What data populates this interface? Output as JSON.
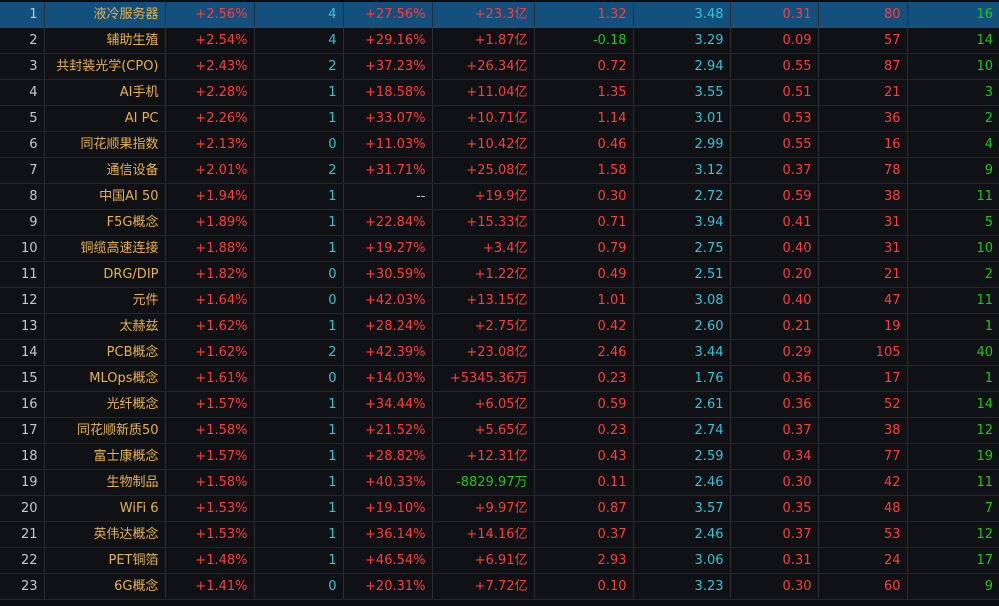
{
  "colors": {
    "up": "#ff3b3b",
    "down": "#19c919",
    "cyan": "#35c3d6",
    "name": "#e6b24a",
    "selected": "#13507e"
  },
  "selected_row": 0,
  "rows": [
    {
      "idx": "1",
      "name": "液冷服务器",
      "pct": "+2.56%",
      "c4": "4",
      "c5": "+27.56%",
      "c6": "+23.3亿",
      "c7": "1.32",
      "c8": "3.48",
      "c9": "0.31",
      "c10": "80",
      "c11": "16",
      "flow_dir": "up"
    },
    {
      "idx": "2",
      "name": "辅助生殖",
      "pct": "+2.54%",
      "c4": "4",
      "c5": "+29.16%",
      "c6": "+1.87亿",
      "c7": "-0.18",
      "c8": "3.29",
      "c9": "0.09",
      "c10": "57",
      "c11": "14",
      "flow_dir": "up"
    },
    {
      "idx": "3",
      "name": "共封装光学(CPO)",
      "pct": "+2.43%",
      "c4": "2",
      "c5": "+37.23%",
      "c6": "+26.34亿",
      "c7": "0.72",
      "c8": "2.94",
      "c9": "0.55",
      "c10": "87",
      "c11": "10",
      "flow_dir": "up"
    },
    {
      "idx": "4",
      "name": "AI手机",
      "pct": "+2.28%",
      "c4": "1",
      "c5": "+18.58%",
      "c6": "+11.04亿",
      "c7": "1.35",
      "c8": "3.55",
      "c9": "0.51",
      "c10": "21",
      "c11": "3",
      "flow_dir": "up"
    },
    {
      "idx": "5",
      "name": "AI PC",
      "pct": "+2.26%",
      "c4": "1",
      "c5": "+33.07%",
      "c6": "+10.71亿",
      "c7": "1.14",
      "c8": "3.01",
      "c9": "0.53",
      "c10": "36",
      "c11": "2",
      "flow_dir": "up"
    },
    {
      "idx": "6",
      "name": "同花顺果指数",
      "pct": "+2.13%",
      "c4": "0",
      "c5": "+11.03%",
      "c6": "+10.42亿",
      "c7": "0.46",
      "c8": "2.99",
      "c9": "0.55",
      "c10": "16",
      "c11": "4",
      "flow_dir": "up"
    },
    {
      "idx": "7",
      "name": "通信设备",
      "pct": "+2.01%",
      "c4": "2",
      "c5": "+31.71%",
      "c6": "+25.08亿",
      "c7": "1.58",
      "c8": "3.12",
      "c9": "0.37",
      "c10": "78",
      "c11": "9",
      "flow_dir": "up"
    },
    {
      "idx": "8",
      "name": "中国AI 50",
      "pct": "+1.94%",
      "c4": "1",
      "c5": "--",
      "c6": "+19.9亿",
      "c7": "0.30",
      "c8": "2.72",
      "c9": "0.59",
      "c10": "38",
      "c11": "11",
      "flow_dir": "up"
    },
    {
      "idx": "9",
      "name": "F5G概念",
      "pct": "+1.89%",
      "c4": "1",
      "c5": "+22.84%",
      "c6": "+15.33亿",
      "c7": "0.71",
      "c8": "3.94",
      "c9": "0.41",
      "c10": "31",
      "c11": "5",
      "flow_dir": "up"
    },
    {
      "idx": "10",
      "name": "铜缆高速连接",
      "pct": "+1.88%",
      "c4": "1",
      "c5": "+19.27%",
      "c6": "+3.4亿",
      "c7": "0.79",
      "c8": "2.75",
      "c9": "0.40",
      "c10": "31",
      "c11": "10",
      "flow_dir": "up"
    },
    {
      "idx": "11",
      "name": "DRG/DIP",
      "pct": "+1.82%",
      "c4": "0",
      "c5": "+30.59%",
      "c6": "+1.22亿",
      "c7": "0.49",
      "c8": "2.51",
      "c9": "0.20",
      "c10": "21",
      "c11": "2",
      "flow_dir": "up"
    },
    {
      "idx": "12",
      "name": "元件",
      "pct": "+1.64%",
      "c4": "0",
      "c5": "+42.03%",
      "c6": "+13.15亿",
      "c7": "1.01",
      "c8": "3.08",
      "c9": "0.40",
      "c10": "47",
      "c11": "11",
      "flow_dir": "up"
    },
    {
      "idx": "13",
      "name": "太赫兹",
      "pct": "+1.62%",
      "c4": "1",
      "c5": "+28.24%",
      "c6": "+2.75亿",
      "c7": "0.42",
      "c8": "2.60",
      "c9": "0.21",
      "c10": "19",
      "c11": "1",
      "flow_dir": "up"
    },
    {
      "idx": "14",
      "name": "PCB概念",
      "pct": "+1.62%",
      "c4": "2",
      "c5": "+42.39%",
      "c6": "+23.08亿",
      "c7": "2.46",
      "c8": "3.44",
      "c9": "0.29",
      "c10": "105",
      "c11": "40",
      "flow_dir": "up"
    },
    {
      "idx": "15",
      "name": "MLOps概念",
      "pct": "+1.61%",
      "c4": "0",
      "c5": "+14.03%",
      "c6": "+5345.36万",
      "c7": "0.23",
      "c8": "1.76",
      "c9": "0.36",
      "c10": "17",
      "c11": "1",
      "flow_dir": "up"
    },
    {
      "idx": "16",
      "name": "光纤概念",
      "pct": "+1.57%",
      "c4": "1",
      "c5": "+34.44%",
      "c6": "+6.05亿",
      "c7": "0.59",
      "c8": "2.61",
      "c9": "0.36",
      "c10": "52",
      "c11": "14",
      "flow_dir": "up"
    },
    {
      "idx": "17",
      "name": "同花顺新质50",
      "pct": "+1.58%",
      "c4": "1",
      "c5": "+21.52%",
      "c6": "+5.65亿",
      "c7": "0.23",
      "c8": "2.74",
      "c9": "0.37",
      "c10": "38",
      "c11": "12",
      "flow_dir": "up"
    },
    {
      "idx": "18",
      "name": "富士康概念",
      "pct": "+1.57%",
      "c4": "1",
      "c5": "+28.82%",
      "c6": "+12.31亿",
      "c7": "0.43",
      "c8": "2.59",
      "c9": "0.34",
      "c10": "77",
      "c11": "19",
      "flow_dir": "up"
    },
    {
      "idx": "19",
      "name": "生物制品",
      "pct": "+1.58%",
      "c4": "1",
      "c5": "+40.33%",
      "c6": "-8829.97万",
      "c7": "0.11",
      "c8": "2.46",
      "c9": "0.30",
      "c10": "42",
      "c11": "11",
      "flow_dir": "down"
    },
    {
      "idx": "20",
      "name": "WiFi 6",
      "pct": "+1.53%",
      "c4": "1",
      "c5": "+19.10%",
      "c6": "+9.97亿",
      "c7": "0.87",
      "c8": "3.57",
      "c9": "0.35",
      "c10": "48",
      "c11": "7",
      "flow_dir": "up"
    },
    {
      "idx": "21",
      "name": "英伟达概念",
      "pct": "+1.53%",
      "c4": "1",
      "c5": "+36.14%",
      "c6": "+14.16亿",
      "c7": "0.37",
      "c8": "2.46",
      "c9": "0.37",
      "c10": "53",
      "c11": "12",
      "flow_dir": "up"
    },
    {
      "idx": "22",
      "name": "PET铜箔",
      "pct": "+1.48%",
      "c4": "1",
      "c5": "+46.54%",
      "c6": "+6.91亿",
      "c7": "2.93",
      "c8": "3.06",
      "c9": "0.31",
      "c10": "24",
      "c11": "17",
      "flow_dir": "up"
    },
    {
      "idx": "23",
      "name": "6G概念",
      "pct": "+1.41%",
      "c4": "0",
      "c5": "+20.31%",
      "c6": "+7.72亿",
      "c7": "0.10",
      "c8": "3.23",
      "c9": "0.30",
      "c10": "60",
      "c11": "9",
      "flow_dir": "up"
    }
  ]
}
